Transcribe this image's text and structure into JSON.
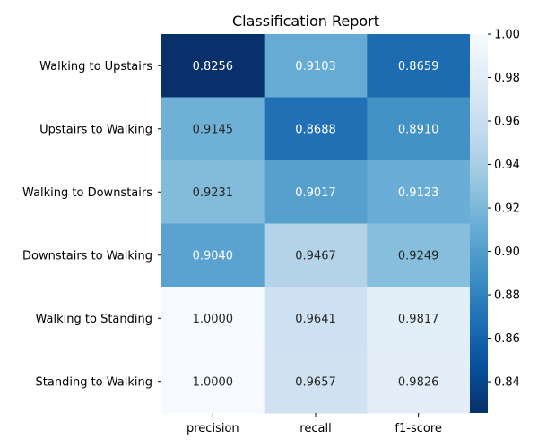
{
  "chart_data": {
    "type": "heatmap",
    "title": "Classification Report",
    "columns": [
      "precision",
      "recall",
      "f1-score"
    ],
    "rows": [
      "Walking to Upstairs",
      "Upstairs to Walking",
      "Walking to Downstairs",
      "Downstairs to Walking",
      "Walking to Standing",
      "Standing to Walking"
    ],
    "values": [
      [
        0.8256,
        0.9103,
        0.8659
      ],
      [
        0.9145,
        0.8688,
        0.891
      ],
      [
        0.9231,
        0.9017,
        0.9123
      ],
      [
        0.904,
        0.9467,
        0.9249
      ],
      [
        1.0,
        0.9641,
        0.9817
      ],
      [
        1.0,
        0.9657,
        0.9826
      ]
    ],
    "value_labels": [
      [
        "0.8256",
        "0.9103",
        "0.8659"
      ],
      [
        "0.9145",
        "0.8688",
        "0.8910"
      ],
      [
        "0.9231",
        "0.9017",
        "0.9123"
      ],
      [
        "0.9040",
        "0.9467",
        "0.9249"
      ],
      [
        "1.0000",
        "0.9641",
        "0.9817"
      ],
      [
        "1.0000",
        "0.9657",
        "0.9826"
      ]
    ],
    "colormap": "Blues_r",
    "colorbar": {
      "vmin": 0.8256,
      "vmax": 1.0,
      "ticks": [
        "0.84",
        "0.86",
        "0.88",
        "0.90",
        "0.92",
        "0.94",
        "0.96",
        "0.98",
        "1.00"
      ]
    }
  }
}
